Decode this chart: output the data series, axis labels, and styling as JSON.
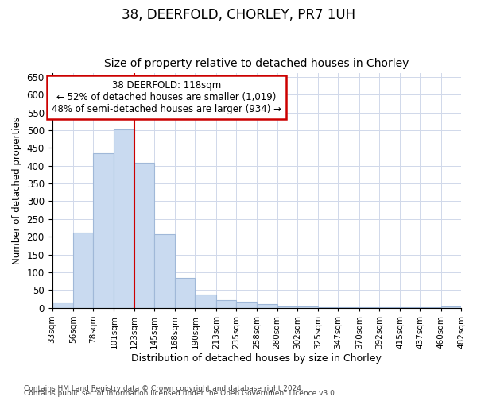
{
  "title": "38, DEERFOLD, CHORLEY, PR7 1UH",
  "subtitle": "Size of property relative to detached houses in Chorley",
  "xlabel": "Distribution of detached houses by size in Chorley",
  "ylabel": "Number of detached properties",
  "footnote1": "Contains HM Land Registry data © Crown copyright and database right 2024.",
  "footnote2": "Contains public sector information licensed under the Open Government Licence v3.0.",
  "annotation_line1": "38 DEERFOLD: 118sqm",
  "annotation_line2": "← 52% of detached houses are smaller (1,019)",
  "annotation_line3": "48% of semi-detached houses are larger (934) →",
  "bar_color": "#c9daf0",
  "bar_edge_color": "#a0b8d8",
  "vline_color": "#cc0000",
  "vline_x": 123,
  "ylim": [
    0,
    660
  ],
  "yticks": [
    0,
    50,
    100,
    150,
    200,
    250,
    300,
    350,
    400,
    450,
    500,
    550,
    600,
    650
  ],
  "bins": [
    33,
    56,
    78,
    101,
    123,
    145,
    168,
    190,
    213,
    235,
    258,
    280,
    302,
    325,
    347,
    370,
    392,
    415,
    437,
    460,
    482
  ],
  "values": [
    15,
    212,
    436,
    503,
    408,
    207,
    85,
    38,
    22,
    18,
    10,
    5,
    3,
    2,
    2,
    2,
    2,
    2,
    1,
    4
  ],
  "bin_labels": [
    "33sqm",
    "56sqm",
    "78sqm",
    "101sqm",
    "123sqm",
    "145sqm",
    "168sqm",
    "190sqm",
    "213sqm",
    "235sqm",
    "258sqm",
    "280sqm",
    "302sqm",
    "325sqm",
    "347sqm",
    "370sqm",
    "392sqm",
    "415sqm",
    "437sqm",
    "460sqm",
    "482sqm"
  ],
  "background_color": "#ffffff",
  "grid_color": "#d0d8ea",
  "annotation_box_color": "#ffffff",
  "annotation_box_edge": "#cc0000",
  "title_fontsize": 12,
  "subtitle_fontsize": 10,
  "ylabel_fontsize": 8.5,
  "xlabel_fontsize": 9,
  "footnote_fontsize": 6.5,
  "annotation_fontsize": 8.5
}
